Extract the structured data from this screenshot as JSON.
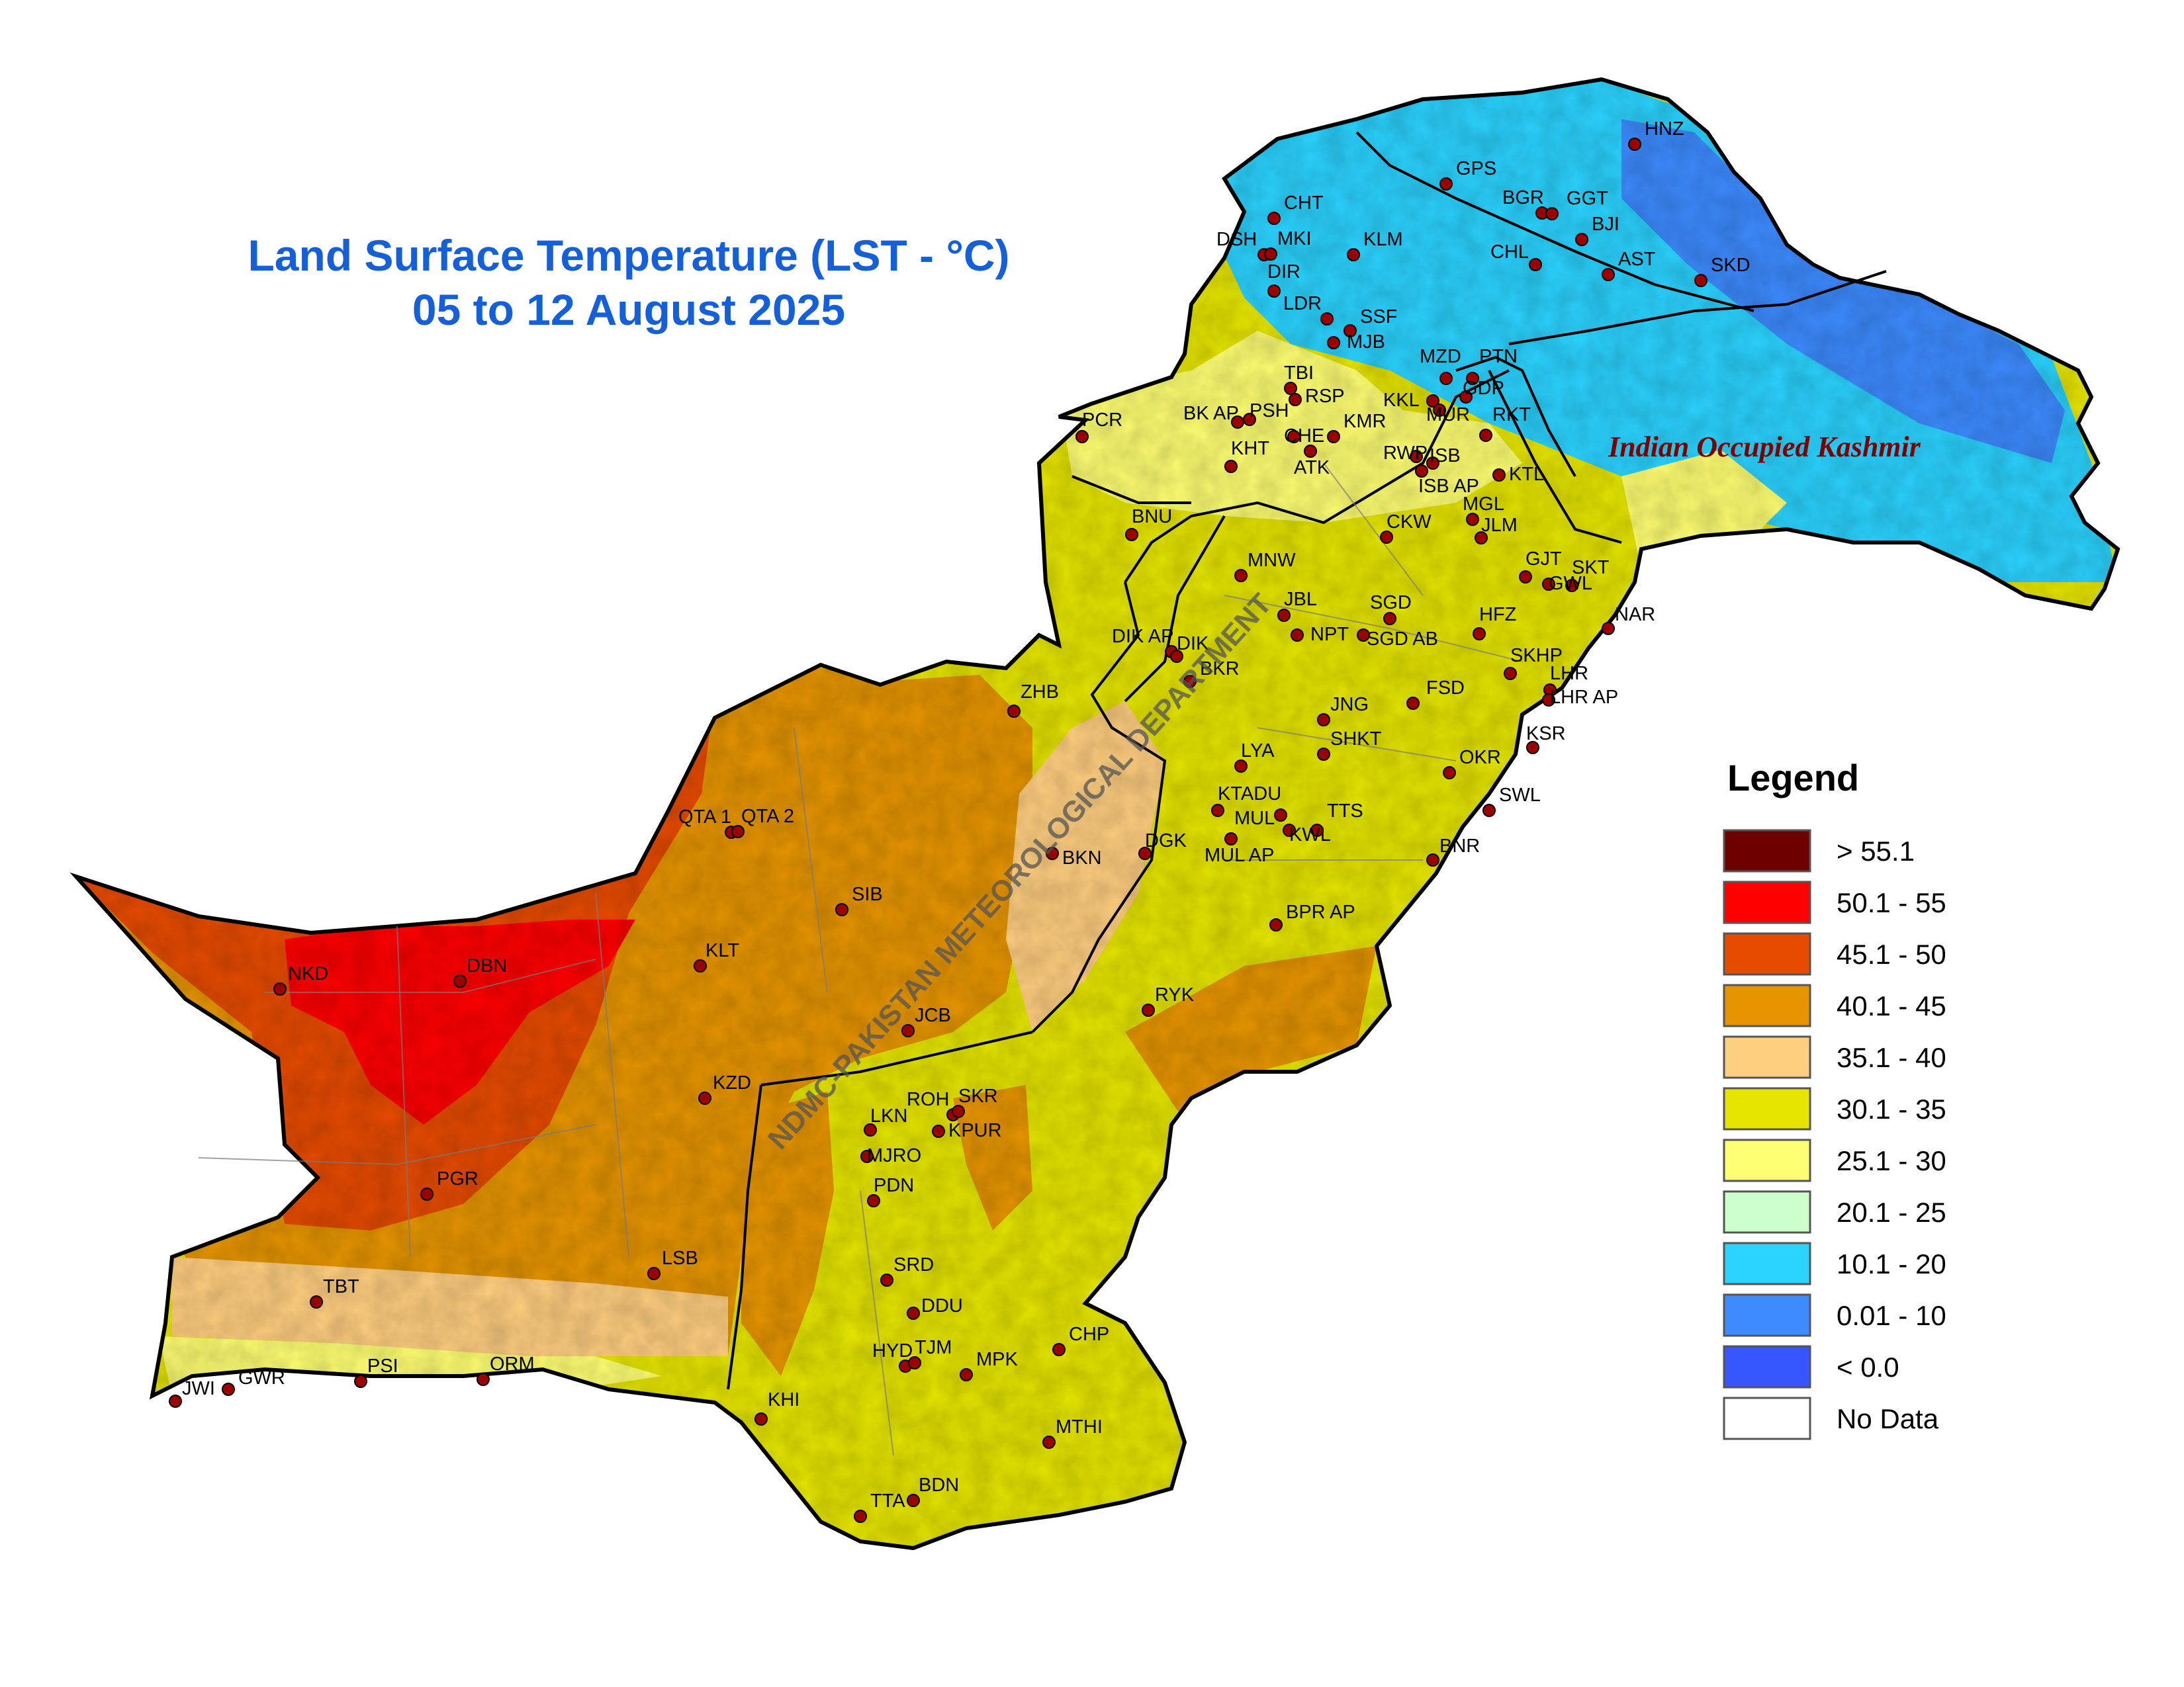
{
  "title": {
    "line1": "Land Surface Temperature (LST - °C)",
    "line2": "05 to 12 August 2025"
  },
  "watermark": "NDMC-PAKISTAN METEOROLOGICAL DEPARTMENT",
  "region_label": "Indian Occupied Kashmir",
  "legend": {
    "title": "Legend",
    "items": [
      {
        "label": "> 55.1",
        "color": "#6e0000"
      },
      {
        "label": "50.1 - 55",
        "color": "#ff0000"
      },
      {
        "label": "45.1 - 50",
        "color": "#e64b00"
      },
      {
        "label": "40.1 - 45",
        "color": "#e69500"
      },
      {
        "label": "35.1 - 40",
        "color": "#ffcf80"
      },
      {
        "label": "30.1 - 35",
        "color": "#e5e500"
      },
      {
        "label": "25.1 - 30",
        "color": "#ffff73"
      },
      {
        "label": "20.1 - 25",
        "color": "#ccffcc"
      },
      {
        "label": "10.1 - 20",
        "color": "#2bd3ff"
      },
      {
        "label": "0.01 - 10",
        "color": "#3d8bff"
      },
      {
        "label": "< 0.0",
        "color": "#3556ff"
      },
      {
        "label": "No Data",
        "color": "#ffffff"
      }
    ]
  },
  "stations": [
    "HNZ",
    "GPS",
    "BGR",
    "GGT",
    "CHT",
    "DSH",
    "MKI",
    "KLM",
    "BJI",
    "CHL",
    "AST",
    "SKD",
    "DIR",
    "LDR",
    "SSF",
    "MJB",
    "TBI",
    "RSP",
    "KKL",
    "MZD",
    "PTN",
    "GDP",
    "PCR",
    "BK AP",
    "PSH",
    "CHE",
    "KMR",
    "MUR",
    "RKT",
    "RWP",
    "ISB",
    "KHT",
    "ATK",
    "ISB AP",
    "KTL",
    "MGL",
    "JLM",
    "BNU",
    "CKW",
    "GJT",
    "SKT",
    "MNW",
    "HFZ",
    "GWL",
    "NAR",
    "JBL",
    "SGD",
    "SGD AB",
    "NPT",
    "DIK AP",
    "DIK",
    "BKR",
    "SKHP",
    "LHR",
    "LHR AP",
    "ZHB",
    "FSD",
    "JNG",
    "SHKT",
    "KSR",
    "LYA",
    "OKR",
    "KTADU",
    "QTA 1",
    "QTA 2",
    "MUL",
    "TTS",
    "SWL",
    "KWL",
    "MUL AP",
    "DGK",
    "BKN",
    "BNR",
    "SIB",
    "BPR AP",
    "KLT",
    "NKD",
    "DBN",
    "RYK",
    "JCB",
    "KZD",
    "ROH",
    "SKR",
    "LKN",
    "KPUR",
    "MJRO",
    "PDN",
    "PGR",
    "LSB",
    "SRD",
    "TBT",
    "DDU",
    "CHP",
    "HYD",
    "TJM",
    "MPK",
    "PSI",
    "ORM",
    "JWI",
    "GWR",
    "KHI",
    "MTHI",
    "BDN",
    "TTA"
  ]
}
